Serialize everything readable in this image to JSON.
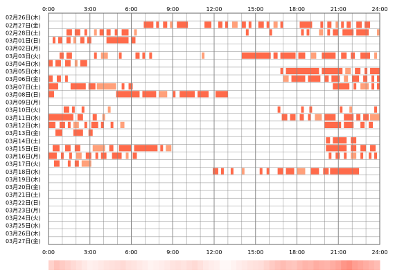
{
  "chart_data": {
    "type": "heatmap",
    "title": "",
    "xlabel": "",
    "ylabel": "",
    "xlim": [
      0,
      24
    ],
    "x_ticks": [
      "0:00",
      "3:00",
      "6:00",
      "9:00",
      "12:00",
      "15:00",
      "18:00",
      "21:00",
      "24:00"
    ],
    "days": [
      "02月26日(木)",
      "02月27日(金)",
      "02月28日(土)",
      "03月01日(日)",
      "03月02日(月)",
      "03月03日(火)",
      "03月04日(水)",
      "03月05日(木)",
      "03月06日(金)",
      "03月07日(土)",
      "03月08日(日)",
      "03月09日(月)",
      "03月10日(火)",
      "03月11日(水)",
      "03月12日(木)",
      "03月13日(金)",
      "03月14日(土)",
      "03月15日(日)",
      "03月16日(月)",
      "03月17日(火)",
      "03月18日(水)",
      "03月19日(木)",
      "03月20日(金)",
      "03月21日(土)",
      "03月22日(日)",
      "03月23日(月)",
      "03月24日(火)",
      "03月25日(水)",
      "03月26日(木)",
      "03月27日(金)"
    ],
    "units": "hours",
    "active_intervals": [
      [],
      [
        [
          6.9,
          7.6
        ],
        [
          7.8,
          8.0
        ],
        [
          8.3,
          8.6
        ],
        [
          8.8,
          9.0
        ],
        [
          9.3,
          10.1
        ],
        [
          11.3,
          11.8
        ],
        [
          12.3,
          12.6
        ],
        [
          12.8,
          13.0
        ],
        [
          13.3,
          13.7
        ],
        [
          14.0,
          14.3
        ],
        [
          14.5,
          14.7
        ],
        [
          15.2,
          15.6
        ],
        [
          15.8,
          16.0
        ],
        [
          16.3,
          16.6
        ],
        [
          16.8,
          17.0
        ],
        [
          18.2,
          19.1
        ],
        [
          19.7,
          19.9
        ],
        [
          20.2,
          20.5
        ],
        [
          20.8,
          21.0
        ],
        [
          21.2,
          21.4
        ],
        [
          21.6,
          21.9
        ],
        [
          22.3,
          22.7
        ],
        [
          22.9,
          23.3
        ]
      ],
      [
        [
          1.3,
          1.7
        ],
        [
          1.9,
          2.3
        ],
        [
          2.6,
          2.8
        ],
        [
          3.3,
          3.5
        ],
        [
          3.7,
          4.0
        ],
        [
          4.2,
          4.5
        ],
        [
          4.8,
          5.0
        ],
        [
          5.3,
          5.8
        ],
        [
          6.2,
          6.4
        ],
        [
          14.3,
          14.5
        ],
        [
          16.0,
          16.2
        ],
        [
          18.3,
          18.5
        ],
        [
          18.7,
          18.9
        ],
        [
          19.6,
          19.9
        ],
        [
          20.2,
          20.4
        ],
        [
          20.6,
          21.0
        ],
        [
          21.3,
          22.1
        ],
        [
          22.3,
          23.2
        ],
        [
          23.8,
          24.0
        ]
      ],
      [
        [
          0.3,
          0.5
        ],
        [
          0.7,
          1.0
        ],
        [
          1.3,
          1.6
        ],
        [
          1.8,
          2.0
        ],
        [
          2.3,
          2.6
        ],
        [
          2.8,
          3.1
        ],
        [
          4.2,
          5.8
        ],
        [
          6.0,
          6.3
        ]
      ],
      [],
      [
        [
          0.8,
          1.1
        ],
        [
          1.3,
          1.7
        ],
        [
          3.3,
          3.5
        ],
        [
          3.8,
          4.3
        ],
        [
          5.1,
          5.3
        ],
        [
          6.3,
          6.6
        ],
        [
          6.8,
          7.0
        ],
        [
          7.3,
          7.5
        ],
        [
          11.1,
          11.3
        ],
        [
          14.0,
          16.1
        ],
        [
          16.3,
          16.6
        ],
        [
          16.8,
          17.9
        ],
        [
          18.1,
          18.6
        ],
        [
          19.0,
          19.4
        ],
        [
          19.8,
          20.8
        ],
        [
          21.2,
          21.6
        ],
        [
          21.9,
          22.2
        ],
        [
          22.6,
          23.3
        ],
        [
          23.6,
          23.8
        ]
      ],
      [
        [
          0.0,
          0.3
        ],
        [
          0.5,
          0.9
        ],
        [
          1.2,
          1.6
        ],
        [
          1.9,
          2.1
        ],
        [
          2.3,
          2.8
        ]
      ],
      [
        [
          16.8,
          17.0
        ],
        [
          17.2,
          19.6
        ],
        [
          19.8,
          21.3
        ],
        [
          21.5,
          21.9
        ],
        [
          22.2,
          22.6
        ],
        [
          22.9,
          23.1
        ],
        [
          23.3,
          24.0
        ]
      ],
      [
        [
          0.0,
          0.3
        ],
        [
          0.6,
          0.9
        ],
        [
          1.2,
          1.4
        ],
        [
          17.0,
          17.4
        ],
        [
          17.6,
          18.6
        ],
        [
          18.8,
          19.7
        ],
        [
          20.0,
          20.3
        ],
        [
          20.5,
          21.1
        ],
        [
          21.4,
          21.7
        ],
        [
          22.0,
          22.5
        ],
        [
          22.8,
          23.1
        ],
        [
          23.4,
          23.6
        ],
        [
          23.8,
          24.0
        ]
      ],
      [
        [
          0.0,
          0.7
        ],
        [
          1.6,
          2.7
        ],
        [
          2.9,
          3.4
        ],
        [
          3.5,
          4.9
        ],
        [
          5.3,
          5.5
        ],
        [
          5.8,
          6.1
        ],
        [
          20.6,
          21.8
        ],
        [
          22.1,
          22.3
        ],
        [
          22.6,
          23.2
        ],
        [
          23.4,
          23.6
        ],
        [
          23.8,
          24.0
        ]
      ],
      [
        [
          0.0,
          0.4
        ],
        [
          4.9,
          6.6
        ],
        [
          6.8,
          7.8
        ],
        [
          8.0,
          8.6
        ],
        [
          9.0,
          9.2
        ],
        [
          9.5,
          10.6
        ],
        [
          10.8,
          11.6
        ],
        [
          12.1,
          13.0
        ]
      ],
      [],
      [
        [
          1.1,
          1.5
        ],
        [
          1.7,
          1.9
        ],
        [
          2.4,
          2.6
        ],
        [
          4.3,
          4.5
        ],
        [
          16.6,
          16.8
        ],
        [
          18.3,
          18.5
        ],
        [
          18.9,
          19.1
        ],
        [
          21.1,
          21.3
        ],
        [
          21.8,
          22.0
        ],
        [
          23.6,
          23.8
        ]
      ],
      [
        [
          0.0,
          1.8
        ],
        [
          2.1,
          2.5
        ],
        [
          3.2,
          3.5
        ],
        [
          3.9,
          4.1
        ],
        [
          16.9,
          17.3
        ],
        [
          17.5,
          17.9
        ],
        [
          18.2,
          18.5
        ],
        [
          18.8,
          19.0
        ],
        [
          19.3,
          19.8
        ],
        [
          20.0,
          20.8
        ],
        [
          21.4,
          22.1
        ],
        [
          22.3,
          22.6
        ],
        [
          22.8,
          23.2
        ],
        [
          23.3,
          24.0
        ]
      ],
      [
        [
          0.0,
          0.5
        ],
        [
          0.8,
          1.2
        ],
        [
          1.4,
          1.6
        ],
        [
          1.8,
          2.2
        ],
        [
          2.6,
          2.8
        ],
        [
          3.1,
          3.6
        ],
        [
          3.8,
          4.0
        ],
        [
          4.5,
          4.7
        ],
        [
          5.2,
          5.5
        ],
        [
          20.0,
          21.2
        ],
        [
          21.4,
          22.1
        ],
        [
          22.6,
          22.9
        ],
        [
          23.2,
          23.5
        ]
      ],
      [
        [
          0.5,
          1.0
        ],
        [
          1.8,
          2.5
        ],
        [
          2.9,
          3.2
        ]
      ],
      [
        [
          20.1,
          20.4
        ],
        [
          20.6,
          21.6
        ],
        [
          21.9,
          22.3
        ]
      ],
      [
        [
          0.3,
          0.8
        ],
        [
          1.2,
          1.6
        ],
        [
          1.9,
          2.3
        ],
        [
          3.2,
          4.1
        ],
        [
          4.4,
          4.7
        ],
        [
          5.1,
          6.0
        ],
        [
          6.2,
          7.9
        ],
        [
          8.1,
          8.3
        ],
        [
          8.5,
          8.9
        ],
        [
          20.1,
          21.6
        ],
        [
          21.9,
          22.3
        ],
        [
          22.6,
          23.0
        ],
        [
          23.3,
          23.7
        ]
      ],
      [
        [
          0.0,
          0.6
        ],
        [
          0.9,
          1.1
        ],
        [
          1.5,
          1.7
        ],
        [
          2.0,
          2.4
        ],
        [
          2.7,
          3.1
        ],
        [
          3.4,
          3.6
        ],
        [
          3.8,
          4.2
        ],
        [
          4.6,
          5.3
        ],
        [
          5.6,
          5.8
        ],
        [
          6.1,
          6.4
        ],
        [
          20.3,
          20.5
        ],
        [
          20.8,
          21.1
        ],
        [
          21.4,
          21.6
        ],
        [
          21.9,
          22.3
        ],
        [
          22.6,
          22.8
        ],
        [
          23.2,
          23.4
        ],
        [
          23.6,
          23.8
        ]
      ],
      [
        [
          0.4,
          0.8
        ],
        [
          1.4,
          1.6
        ],
        [
          1.9,
          2.2
        ],
        [
          2.4,
          3.1
        ]
      ],
      [
        [
          11.9,
          12.3
        ],
        [
          12.5,
          12.7
        ],
        [
          13.2,
          13.4
        ],
        [
          14.0,
          14.2
        ],
        [
          15.3,
          15.5
        ],
        [
          15.8,
          16.0
        ],
        [
          16.6,
          17.0
        ],
        [
          17.2,
          17.8
        ],
        [
          18.0,
          18.6
        ],
        [
          19.0,
          19.6
        ],
        [
          19.9,
          20.3
        ],
        [
          20.4,
          22.5
        ]
      ],
      [],
      [],
      [],
      [],
      [],
      [],
      [],
      [],
      []
    ],
    "density_strip": {
      "description_free": true,
      "values": [
        0.3,
        0.4,
        0.35,
        0.3,
        0.25,
        0.2,
        0.15,
        0.1,
        0.12,
        0.15,
        0.18,
        0.2,
        0.22,
        0.25,
        0.2,
        0.18,
        0.15,
        0.12,
        0.08,
        0.1,
        0.12,
        0.15,
        0.18,
        0.2,
        0.18,
        0.22,
        0.25,
        0.2,
        0.15,
        0.12,
        0.1,
        0.05,
        0.05,
        0.08,
        0.12,
        0.15,
        0.18,
        0.2,
        0.22,
        0.28,
        0.35,
        0.4,
        0.45,
        0.4,
        0.38,
        0.45,
        0.5,
        0.48,
        0.55,
        0.52,
        0.5,
        0.55,
        0.6,
        0.7,
        0.75,
        0.65,
        0.6,
        0.55,
        0.5,
        0.45
      ]
    },
    "colors": {
      "bar": "#ff6a4a",
      "bar_light": "#ffa07a",
      "grid": "#888888",
      "border": "#666666"
    }
  }
}
